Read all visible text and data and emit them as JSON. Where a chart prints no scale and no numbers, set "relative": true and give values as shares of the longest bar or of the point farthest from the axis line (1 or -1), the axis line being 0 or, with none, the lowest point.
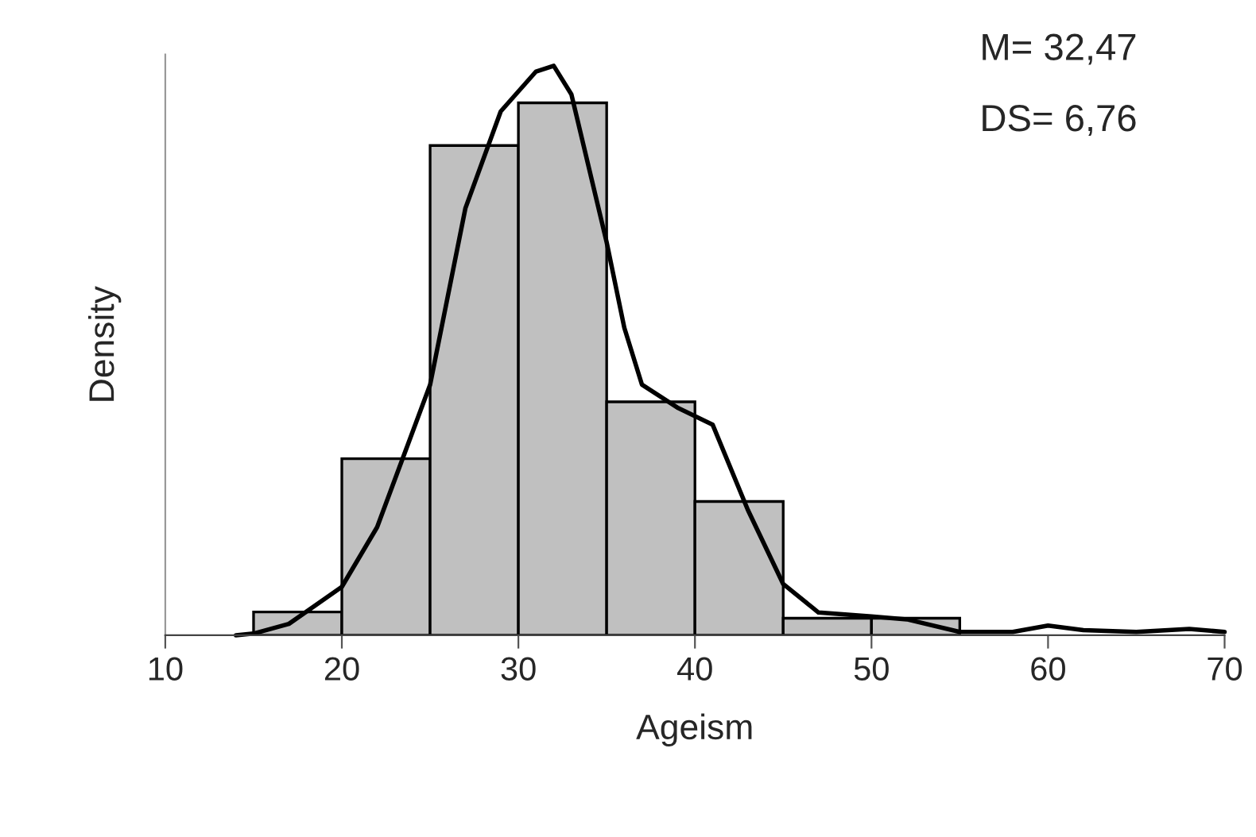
{
  "chart_data": {
    "type": "histogram",
    "relative": true,
    "xlabel": "Ageism",
    "ylabel": "Density",
    "bins": [
      15,
      20,
      25,
      30,
      35,
      40,
      45,
      50,
      55
    ],
    "values": [
      0.041,
      0.31,
      0.86,
      0.935,
      0.41,
      0.235,
      0.03,
      0.03
    ],
    "color": "#c0c0c0",
    "series": [
      {
        "type": "line",
        "color": "#000000",
        "x": [
          14,
          15,
          17,
          20,
          22,
          25,
          27,
          29,
          31,
          32,
          33,
          35,
          36,
          37,
          39,
          41,
          43,
          45,
          47,
          50,
          52,
          55,
          58,
          60,
          62,
          65,
          68,
          70
        ],
        "values": [
          0.0,
          0.003,
          0.02,
          0.085,
          0.19,
          0.44,
          0.75,
          0.92,
          0.99,
          1.0,
          0.95,
          0.69,
          0.54,
          0.44,
          0.4,
          0.37,
          0.22,
          0.09,
          0.04,
          0.033,
          0.028,
          0.006,
          0.006,
          0.017,
          0.009,
          0.006,
          0.011,
          0.006
        ]
      }
    ],
    "xlim": [
      10,
      70
    ],
    "xticks": [
      10,
      20,
      30,
      40,
      50,
      60,
      70
    ],
    "annotations": [
      "M= 32,47",
      "DS= 6,76"
    ]
  }
}
